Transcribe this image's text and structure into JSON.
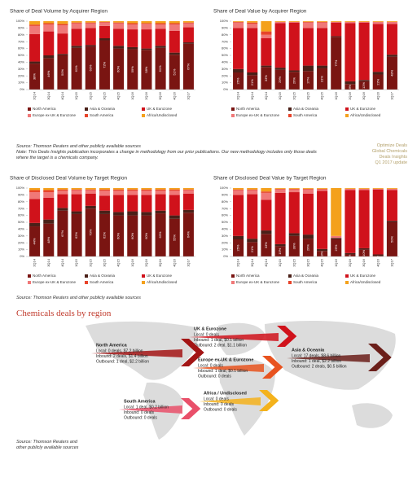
{
  "chart_data": [
    {
      "type": "bar",
      "stacked": true,
      "title": "Share of Deal Volume by Acquirer Region",
      "categories": [
        "2Q14",
        "3Q14",
        "4Q14",
        "1Q15",
        "2Q15",
        "3Q15",
        "4Q15",
        "1Q16",
        "2Q16",
        "3Q16",
        "4Q16",
        "1Q17"
      ],
      "ylim": [
        0,
        100
      ],
      "yticks": [
        {
          "value": 0,
          "label": "0%"
        },
        {
          "value": 10,
          "label": "10%"
        },
        {
          "value": 20,
          "label": "20%"
        },
        {
          "value": 30,
          "label": "30%"
        },
        {
          "value": 40,
          "label": "40%"
        },
        {
          "value": 50,
          "label": "50%"
        },
        {
          "value": 60,
          "label": "60%"
        },
        {
          "value": 70,
          "label": "70%"
        },
        {
          "value": 80,
          "label": "80%"
        },
        {
          "value": 90,
          "label": "90%"
        },
        {
          "value": 100,
          "label": "100%"
        }
      ],
      "series": [
        {
          "name": "North America",
          "color": "#7a1512",
          "values": [
            38,
            46,
            50,
            61,
            63,
            72,
            60,
            59,
            58,
            61,
            51,
            67
          ],
          "value_labels": [
            "38%",
            "46%",
            "50%",
            "61%",
            "63%",
            "72%",
            "60%",
            "59%",
            "58%",
            "61%",
            "51%",
            "67%"
          ]
        },
        {
          "name": "Asia & Oceania",
          "color": "#4a2018",
          "values": [
            3,
            4,
            2,
            3,
            2,
            3,
            4,
            3,
            2,
            3,
            3,
            2
          ]
        },
        {
          "name": "UK & Eurozone",
          "color": "#d0121b",
          "values": [
            40,
            35,
            30,
            25,
            25,
            18,
            25,
            26,
            28,
            25,
            32,
            22
          ]
        },
        {
          "name": "Europe ex-UK & Eurozone",
          "color": "#f07878",
          "values": [
            12,
            10,
            12,
            8,
            7,
            5,
            8,
            7,
            8,
            6,
            9,
            6
          ]
        },
        {
          "name": "South America",
          "color": "#e8442a",
          "values": [
            2,
            2,
            2,
            1,
            1,
            1,
            1,
            2,
            1,
            2,
            2,
            1
          ]
        },
        {
          "name": "Africa/Undisclosed",
          "color": "#f4a11c",
          "values": [
            5,
            3,
            4,
            2,
            2,
            1,
            2,
            3,
            3,
            3,
            3,
            2
          ]
        }
      ]
    },
    {
      "type": "bar",
      "stacked": true,
      "title": "Share of Deal Value by Acquirer Region",
      "categories": [
        "2Q14",
        "3Q14",
        "4Q14",
        "1Q15",
        "2Q15",
        "3Q15",
        "4Q15",
        "1Q16",
        "2Q16",
        "3Q16",
        "4Q16",
        "1Q17"
      ],
      "ylim": [
        0,
        100
      ],
      "yticks": [
        {
          "value": 0,
          "label": "0%"
        },
        {
          "value": 10,
          "label": "10%"
        },
        {
          "value": 20,
          "label": "20%"
        },
        {
          "value": 30,
          "label": "30%"
        },
        {
          "value": 40,
          "label": "40%"
        },
        {
          "value": 50,
          "label": "50%"
        },
        {
          "value": 60,
          "label": "60%"
        },
        {
          "value": 70,
          "label": "70%"
        },
        {
          "value": 80,
          "label": "80%"
        },
        {
          "value": 90,
          "label": "90%"
        },
        {
          "value": 100,
          "label": "100%"
        }
      ],
      "series": [
        {
          "name": "North America",
          "color": "#7a1512",
          "values": [
            25,
            21,
            33,
            29,
            26,
            27,
            31,
            77,
            8,
            12,
            22,
            48
          ],
          "value_labels": [
            "25%",
            "21%",
            "33%",
            "29%",
            "26%",
            "27%",
            "31%",
            "77%",
            "8%",
            "12%",
            "22%",
            "48%"
          ]
        },
        {
          "name": "Asia & Oceania",
          "color": "#4a2018",
          "values": [
            5,
            4,
            2,
            3,
            2,
            8,
            4,
            1,
            4,
            2,
            4,
            3
          ]
        },
        {
          "name": "UK & Eurozone",
          "color": "#d0121b",
          "values": [
            60,
            65,
            40,
            65,
            70,
            55,
            55,
            20,
            85,
            84,
            70,
            45
          ]
        },
        {
          "name": "Europe ex-UK & Eurozone",
          "color": "#f07878",
          "values": [
            8,
            6,
            5,
            2,
            1,
            8,
            8,
            1,
            2,
            1,
            3,
            3
          ]
        },
        {
          "name": "South America",
          "color": "#e8442a",
          "values": [
            1,
            2,
            5,
            0,
            0,
            1,
            1,
            0,
            0,
            0,
            0,
            0
          ]
        },
        {
          "name": "Africa/Undisclosed",
          "color": "#f4a11c",
          "values": [
            1,
            2,
            15,
            1,
            1,
            1,
            1,
            1,
            1,
            1,
            1,
            1
          ]
        }
      ]
    },
    {
      "type": "bar",
      "stacked": true,
      "title": "Share of Disclosed Deal Volume by Target Region",
      "categories": [
        "2Q14",
        "3Q14",
        "4Q14",
        "1Q15",
        "2Q15",
        "3Q15",
        "4Q15",
        "1Q16",
        "2Q16",
        "3Q16",
        "4Q16",
        "1Q17"
      ],
      "ylim": [
        0,
        100
      ],
      "yticks": [
        {
          "value": 0,
          "label": "0%"
        },
        {
          "value": 10,
          "label": "10%"
        },
        {
          "value": 20,
          "label": "20%"
        },
        {
          "value": 30,
          "label": "30%"
        },
        {
          "value": 40,
          "label": "40%"
        },
        {
          "value": 50,
          "label": "50%"
        },
        {
          "value": 60,
          "label": "60%"
        },
        {
          "value": 70,
          "label": "70%"
        },
        {
          "value": 80,
          "label": "80%"
        },
        {
          "value": 90,
          "label": "90%"
        },
        {
          "value": 100,
          "label": "100%"
        }
      ],
      "series": [
        {
          "name": "North America",
          "color": "#7a1512",
          "values": [
            44,
            48,
            67,
            62,
            70,
            62,
            60,
            60,
            60,
            63,
            55,
            64
          ],
          "value_labels": [
            "44%",
            "48%",
            "67%",
            "62%",
            "70%",
            "62%",
            "60%",
            "60%",
            "60%",
            "63%",
            "55%",
            "64%"
          ]
        },
        {
          "name": "Asia & Oceania",
          "color": "#4a2018",
          "values": [
            5,
            6,
            4,
            4,
            4,
            5,
            5,
            6,
            5,
            4,
            5,
            4
          ]
        },
        {
          "name": "UK & Eurozone",
          "color": "#d0121b",
          "values": [
            35,
            32,
            20,
            25,
            18,
            22,
            25,
            24,
            25,
            24,
            30,
            24
          ]
        },
        {
          "name": "Europe ex-UK & Eurozone",
          "color": "#f07878",
          "values": [
            10,
            8,
            5,
            6,
            5,
            7,
            6,
            6,
            6,
            5,
            6,
            5
          ]
        },
        {
          "name": "South America",
          "color": "#e8442a",
          "values": [
            3,
            3,
            2,
            1,
            1,
            2,
            2,
            2,
            2,
            2,
            2,
            1
          ]
        },
        {
          "name": "Africa/Undisclosed",
          "color": "#f4a11c",
          "values": [
            3,
            3,
            2,
            2,
            2,
            2,
            2,
            2,
            2,
            2,
            2,
            2
          ]
        }
      ]
    },
    {
      "type": "bar",
      "stacked": true,
      "title": "Share of Disclosed Deal Value by Target Region",
      "categories": [
        "2Q14",
        "3Q14",
        "4Q14",
        "1Q15",
        "2Q15",
        "3Q15",
        "4Q15",
        "1Q16",
        "2Q16",
        "3Q16",
        "4Q16",
        "1Q17"
      ],
      "ylim": [
        0,
        100
      ],
      "yticks": [
        {
          "value": 0,
          "label": "0%"
        },
        {
          "value": 10,
          "label": "10%"
        },
        {
          "value": 20,
          "label": "20%"
        },
        {
          "value": 30,
          "label": "30%"
        },
        {
          "value": 40,
          "label": "40%"
        },
        {
          "value": 50,
          "label": "50%"
        },
        {
          "value": 60,
          "label": "60%"
        },
        {
          "value": 70,
          "label": "70%"
        },
        {
          "value": 80,
          "label": "80%"
        },
        {
          "value": 90,
          "label": "90%"
        },
        {
          "value": 100,
          "label": "100%"
        }
      ],
      "series": [
        {
          "name": "North America",
          "color": "#7a1512",
          "values": [
            25,
            21,
            33,
            15,
            30,
            26,
            8,
            25,
            3,
            10,
            1,
            50
          ],
          "value_labels": [
            "25%",
            "21%",
            "33%",
            "15%",
            "30%",
            "26%",
            "8%",
            "25%",
            "3%",
            "10%",
            "1%",
            "50%"
          ]
        },
        {
          "name": "Asia & Oceania",
          "color": "#4a2018",
          "values": [
            5,
            5,
            5,
            3,
            4,
            6,
            3,
            2,
            2,
            2,
            2,
            2
          ]
        },
        {
          "name": "UK & Eurozone",
          "color": "#d0121b",
          "values": [
            60,
            65,
            45,
            75,
            60,
            60,
            85,
            0,
            92,
            85,
            95,
            45
          ]
        },
        {
          "name": "Europe ex-UK & Eurozone",
          "color": "#f07878",
          "values": [
            7,
            6,
            10,
            5,
            4,
            6,
            2,
            3,
            2,
            2,
            1,
            2
          ]
        },
        {
          "name": "South America",
          "color": "#e8442a",
          "values": [
            1,
            1,
            2,
            1,
            1,
            1,
            1,
            0,
            0,
            0,
            0,
            0
          ]
        },
        {
          "name": "Africa/Undisclosed",
          "color": "#f4a11c",
          "values": [
            2,
            2,
            5,
            1,
            1,
            1,
            1,
            70,
            1,
            1,
            1,
            1
          ]
        }
      ]
    }
  ],
  "notes": {
    "source": "Source: Thomson Reuters and other publicly available sources",
    "note": "Note: This Deals Insights publication incorporates a change in methodology from our prior publications. Our new methodology includes only those deals where the target is a chemicals company.",
    "brand": [
      "Optimize Deals",
      "Global Chemicals",
      "Deals Insights",
      "Q1 2017 update"
    ]
  },
  "source_2": "Source: Thomson Reuters and other publicly available sources",
  "map": {
    "title": "Chemicals deals by region",
    "regions": [
      {
        "name": "UK & Eurozone",
        "lines": [
          "Local: 0 deals",
          "Inbound: 1 deal, $0.1 billion",
          "Outbound: 2 deal, $1.1 billion"
        ]
      },
      {
        "name": "North America",
        "lines": [
          "Local: 0 deals, $7.2 billion",
          "Inbound: 2 deals, $1.4 billion",
          "Outbound: 1 deal, $2.2 billion"
        ]
      },
      {
        "name": "Europe ex-UK & Eurozone",
        "lines": [
          "Local: 0 deals",
          "Inbound: 1 deal, $0.1 billion",
          "Outbound: 0 deals"
        ]
      },
      {
        "name": "Asia & Oceania",
        "lines": [
          "Local: 17 deals, $8.6 billion",
          "Inbound: 1 deal, $2.2 billion",
          "Outbound: 2 deals, $0.5 billion"
        ]
      },
      {
        "name": "Africa / Undisclosed",
        "lines": [
          "Local: 0 deals",
          "Inbound: 0 deals",
          "Outbound: 0 deals"
        ]
      },
      {
        "name": "South America",
        "lines": [
          "Local: 1 deal, $0.2 billion",
          "Inbound: 0 deals",
          "Outbound: 0 deals"
        ]
      }
    ],
    "source": [
      "Source: Thomson Reuters and",
      "other publicly available sources"
    ]
  }
}
